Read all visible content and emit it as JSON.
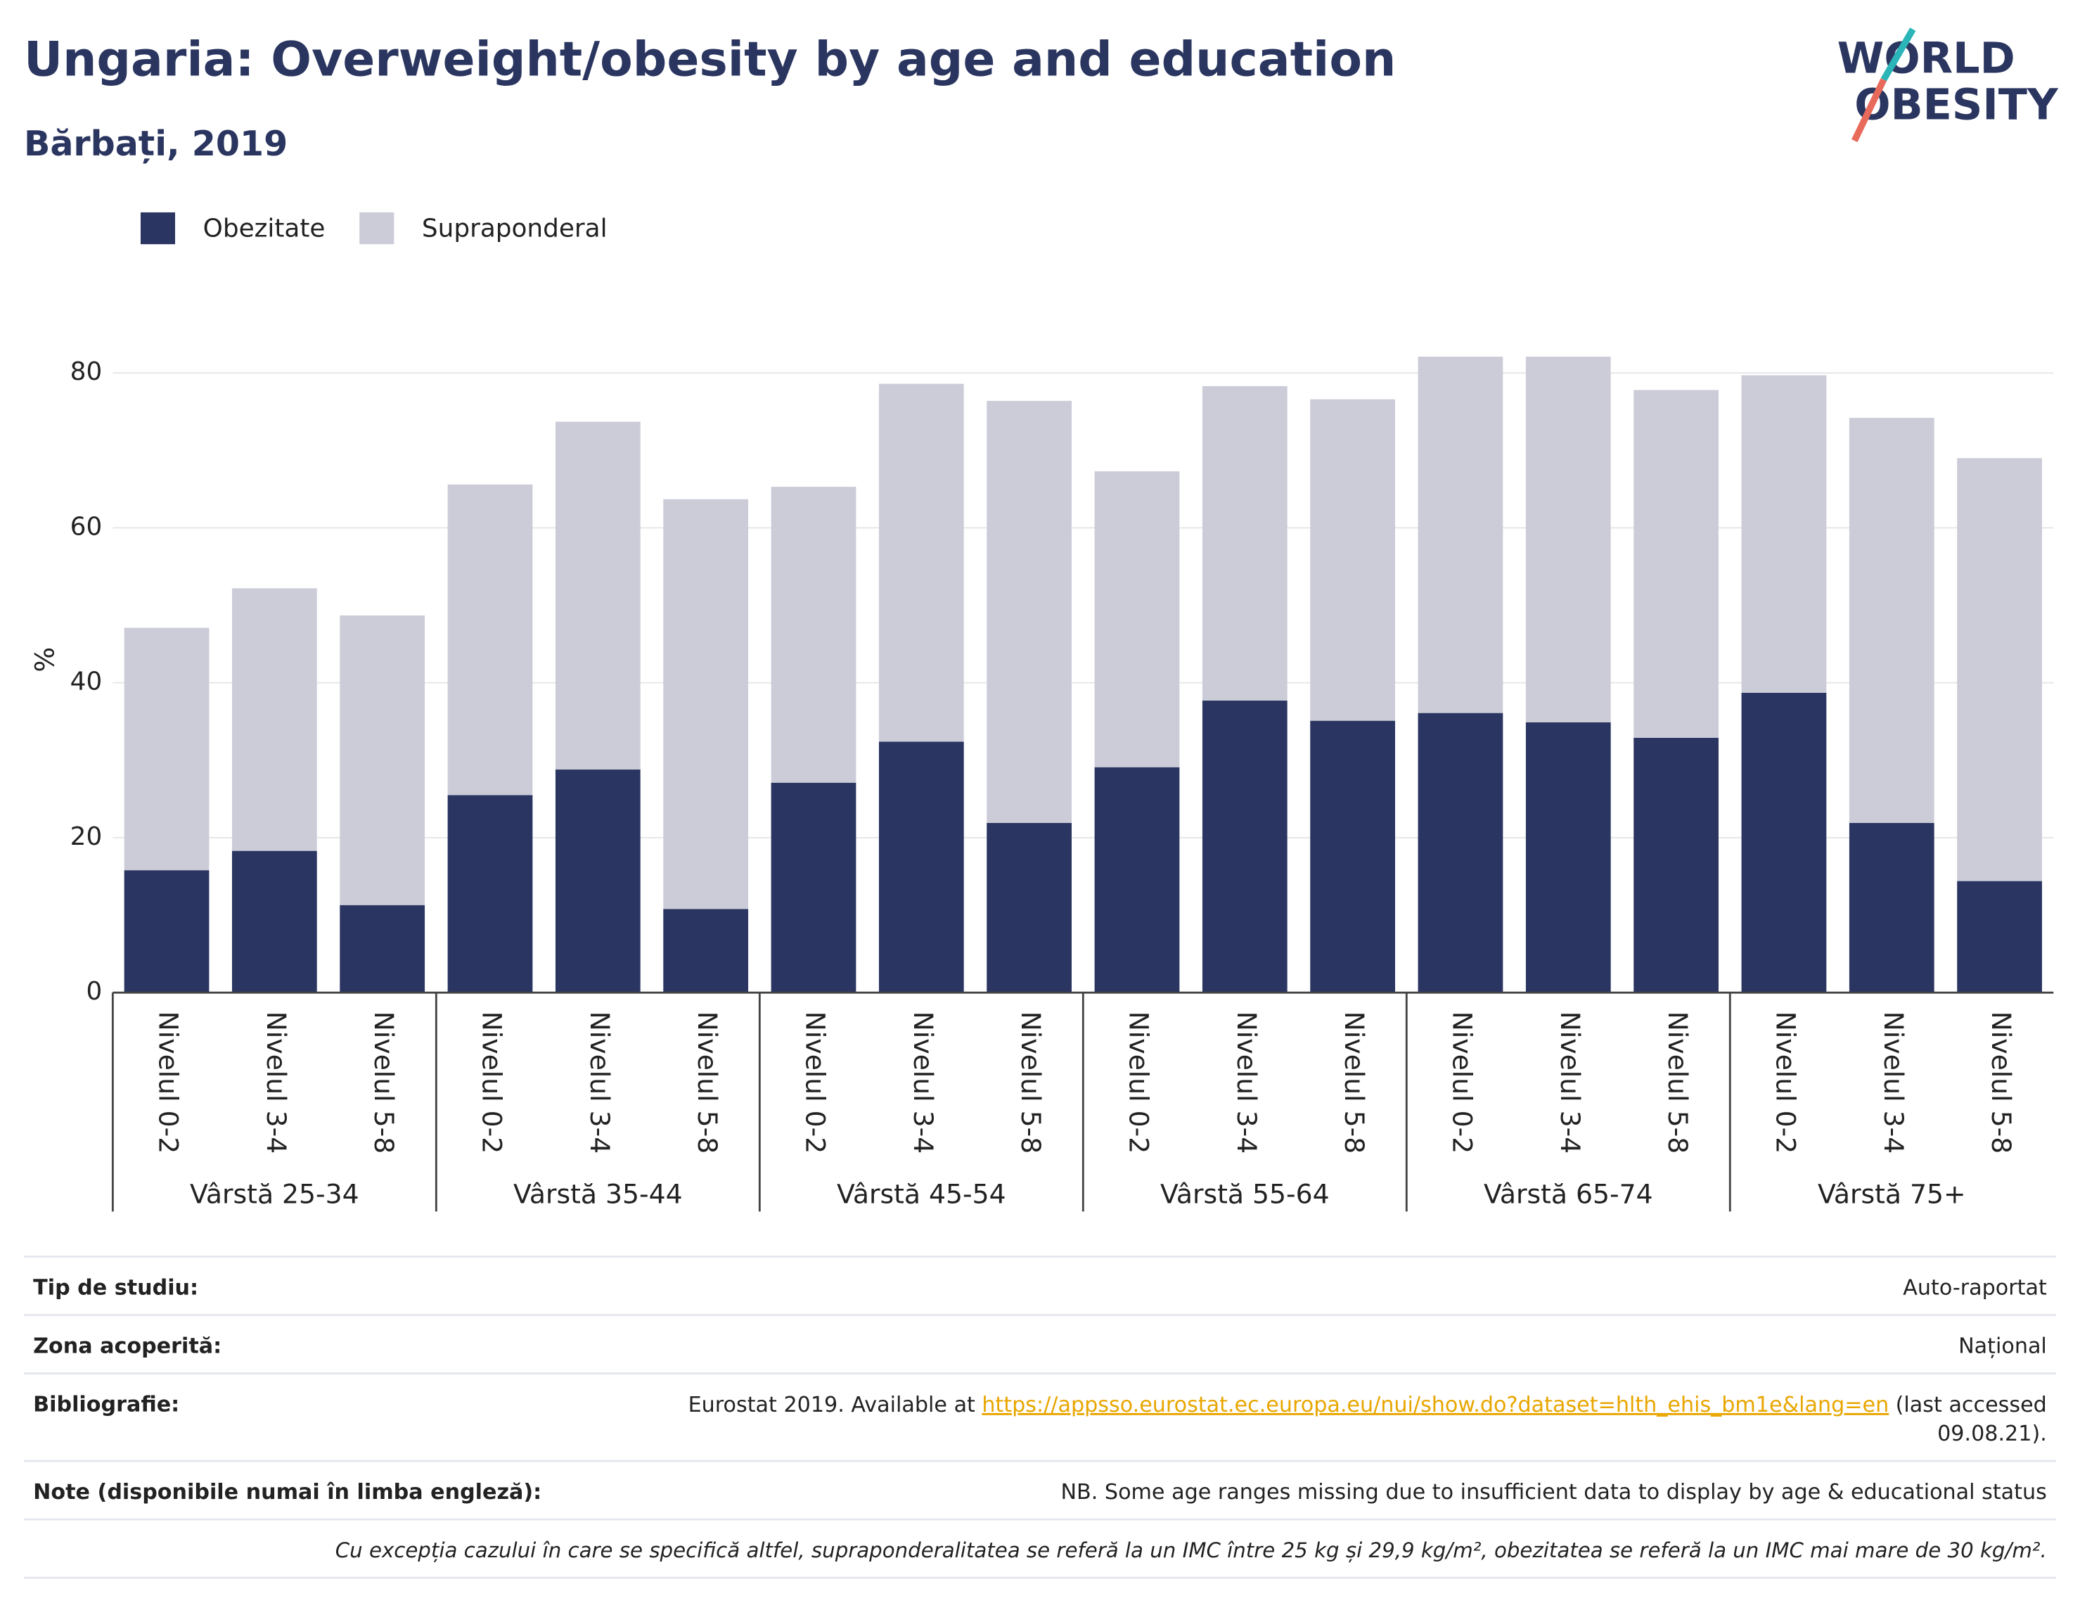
{
  "chart_data": {
    "type": "stacked_bar",
    "title": "Ungaria: Overweight/obesity by age and education",
    "subtitle": "Bărbați, 2019",
    "y_label": "%",
    "categories": [
      "Nivelul 0-2",
      "Nivelul 3-4",
      "Nivelul 5-8",
      "Nivelul 0-2",
      "Nivelul 3-4",
      "Nivelul 5-8",
      "Nivelul 0-2",
      "Nivelul 3-4",
      "Nivelul 5-8",
      "Nivelul 0-2",
      "Nivelul 3-4",
      "Nivelul 5-8",
      "Nivelul 0-2",
      "Nivelul 3-4",
      "Nivelul 5-8",
      "Nivelul 0-2",
      "Nivelul 3-4",
      "Nivelul 5-8"
    ],
    "groups": [
      "Vârstă 25-34",
      "Vârstă 35-44",
      "Vârstă 45-54",
      "Vârstă 55-64",
      "Vârstă 65-74",
      "Vârstă 75+"
    ],
    "series": [
      {
        "name": "Obezitate",
        "color": "#2a3561",
        "values": [
          15.8,
          18.3,
          11.3,
          25.5,
          28.8,
          10.8,
          27.1,
          32.4,
          21.9,
          29.1,
          37.7,
          35.1,
          36.1,
          34.9,
          32.9,
          38.7,
          21.9,
          14.4
        ]
      },
      {
        "name": "Supraponderal",
        "color": "#cbccd8",
        "values": [
          31.3,
          33.9,
          37.4,
          40.1,
          44.9,
          52.9,
          38.2,
          46.2,
          54.5,
          38.2,
          40.6,
          41.5,
          46.0,
          47.2,
          44.9,
          41.0,
          52.3,
          54.6
        ]
      }
    ],
    "ylim": [
      0,
      86
    ],
    "yticks": [
      0,
      20,
      40,
      60,
      80
    ],
    "grid": true,
    "legend": "top-left"
  },
  "logo": {
    "line1": "WORLD",
    "line2": "OBESITY"
  },
  "info": [
    {
      "label": "Tip de studiu:",
      "value": "Auto-raportat"
    },
    {
      "label": "Zona acoperită:",
      "value": "Național"
    },
    {
      "label": "Bibliografie:",
      "value": [
        "Eurostat 2019. Available at",
        "https://appsso.eurostat.ec.europa.eu/nui/show.do?dataset=hlth_ehis_bm1e&lang=en",
        "(last accessed",
        "09.08.21)."
      ]
    },
    {
      "label": "Note (disponibile numai în limba engleză):",
      "value": "NB. Some age ranges missing due to insufficient data to display by age & educational status"
    }
  ],
  "footnote": "Cu excepția cazului în care se specifică altfel, supraponderalitatea se referă la un IMC între 25 kg și 29,9 kg/m², obezitatea se referă la un IMC mai mare de 30 kg/m²."
}
